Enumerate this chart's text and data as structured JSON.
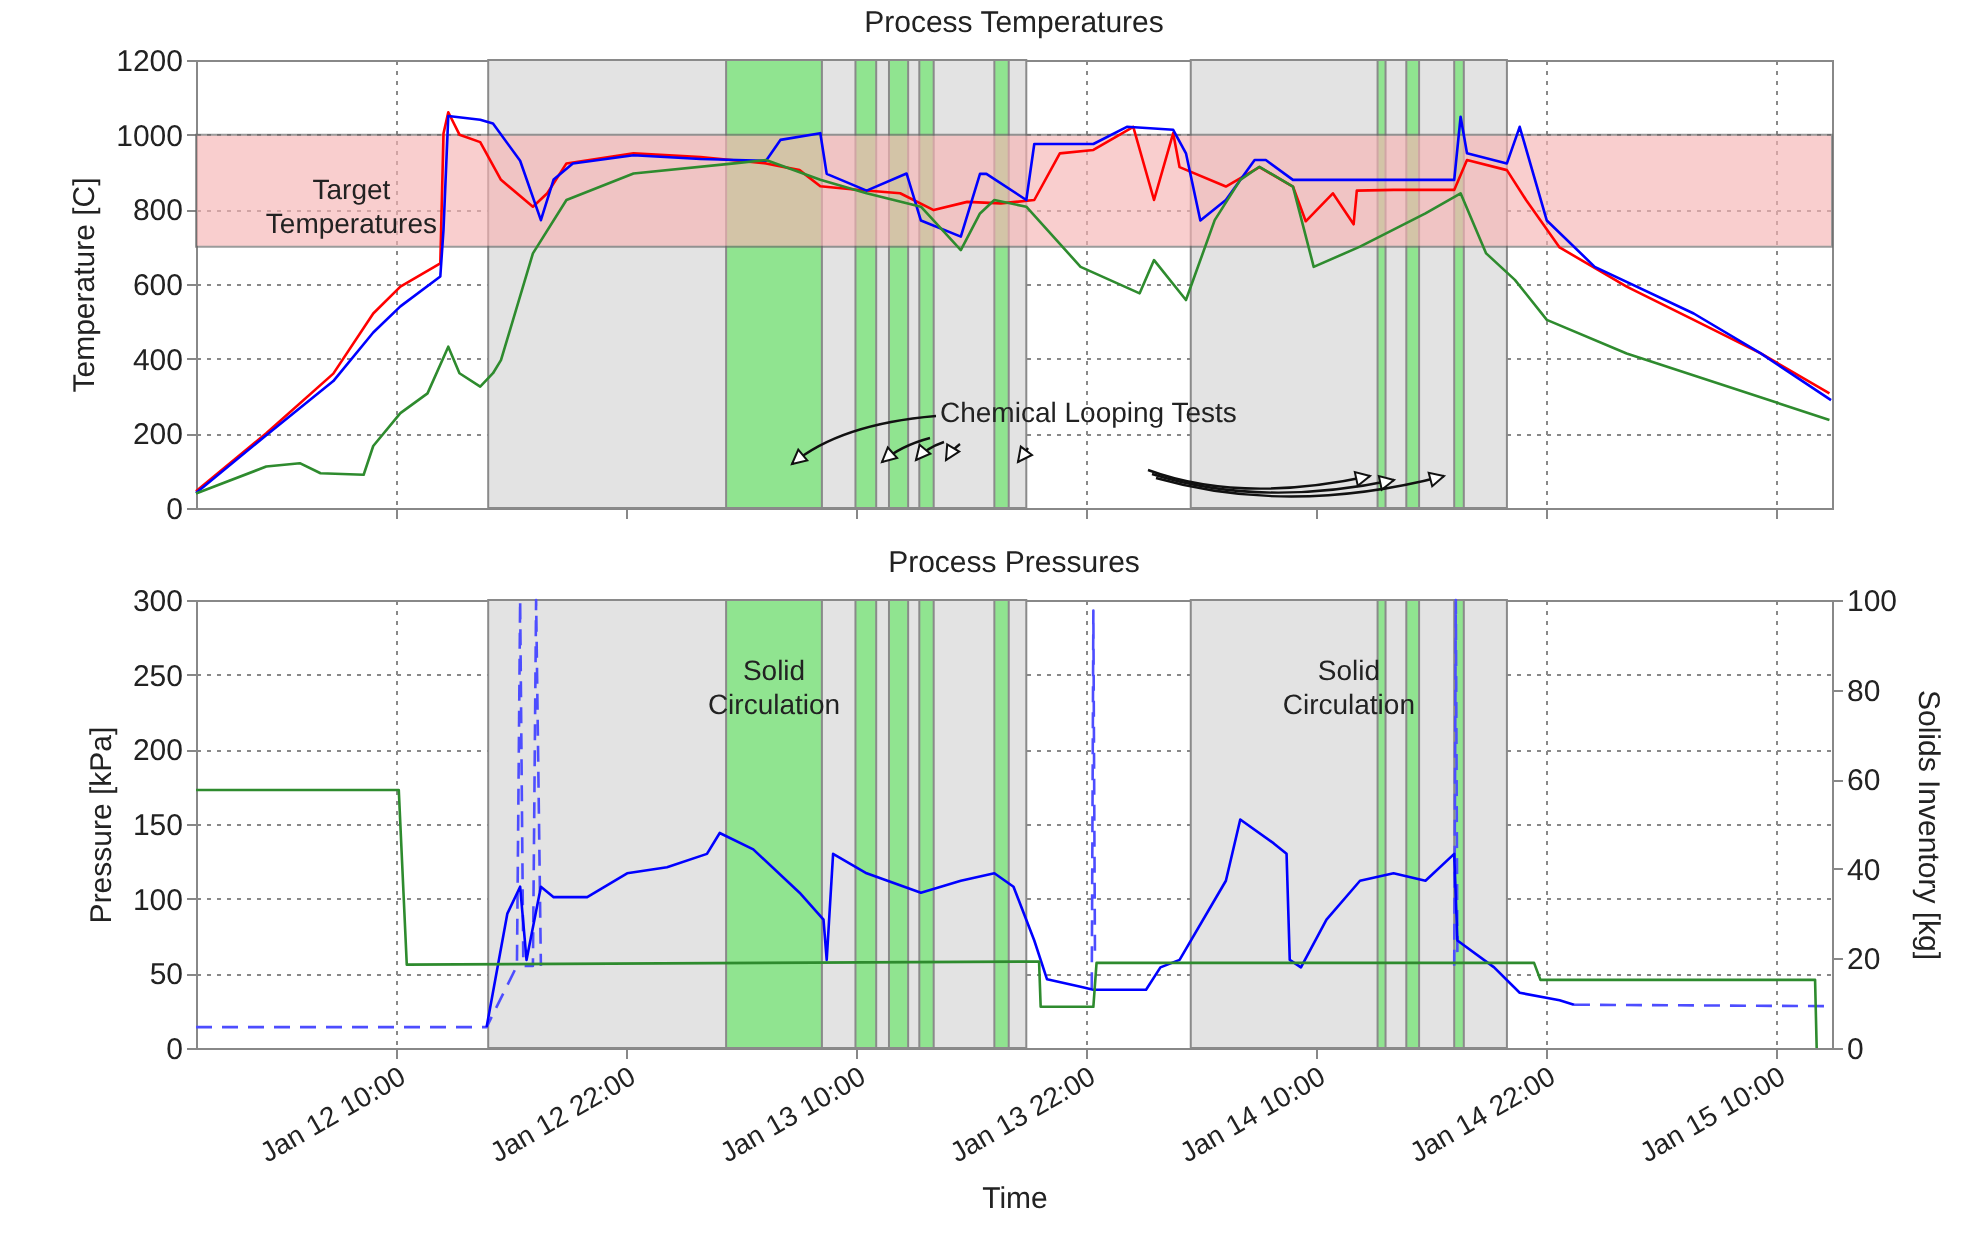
{
  "chart_data": [
    {
      "type": "line",
      "title": "Process Temperatures",
      "ylabel": "Temperature [C]",
      "xlim": [
        "--01-11T23:35",
        "--01-15T12:58"
      ],
      "xticks": [
        {
          "value": "--01-12T10:00",
          "label": "Jan 12 10:00"
        },
        {
          "value": "--01-12T22:00",
          "label": "Jan 12 22:00"
        },
        {
          "value": "--01-13T10:00",
          "label": "Jan 13 10:00"
        },
        {
          "value": "--01-13T22:00",
          "label": "Jan 13 22:00"
        },
        {
          "value": "--01-14T10:00",
          "label": "Jan 14 10:00"
        },
        {
          "value": "--01-14T22:00",
          "label": "Jan 14 22:00"
        },
        {
          "value": "--01-15T10:00",
          "label": "Jan 15 10:00"
        }
      ],
      "ylim": [
        0,
        1200
      ],
      "yticks": [
        0,
        200,
        400,
        600,
        800,
        1000,
        1200
      ],
      "grid": true,
      "tick_labels": "y",
      "bands": [
        {
          "axis": "x",
          "from": "--01-12T14:50",
          "to": "--01-13T18:55",
          "color": "#e3e3e3"
        },
        {
          "axis": "x",
          "from": "--01-14T03:30",
          "to": "--01-14T20:00",
          "color": "#e3e3e3"
        },
        {
          "axis": "x",
          "from": "--01-13T03:15",
          "to": "--01-13T08:15",
          "color": "#90e490"
        },
        {
          "axis": "x",
          "from": "--01-13T10:00",
          "to": "--01-13T11:05",
          "color": "#90e490"
        },
        {
          "axis": "x",
          "from": "--01-13T11:45",
          "to": "--01-13T12:45",
          "color": "#90e490"
        },
        {
          "axis": "x",
          "from": "--01-13T13:20",
          "to": "--01-13T14:05",
          "color": "#90e490"
        },
        {
          "axis": "x",
          "from": "--01-13T17:15",
          "to": "--01-13T18:00",
          "color": "#90e490"
        },
        {
          "axis": "x",
          "from": "--01-14T13:15",
          "to": "--01-14T13:40",
          "color": "#90e490"
        },
        {
          "axis": "x",
          "from": "--01-14T14:45",
          "to": "--01-14T15:25",
          "color": "#90e490"
        },
        {
          "axis": "x",
          "from": "--01-14T17:15",
          "to": "--01-14T17:45",
          "color": "#90e490"
        },
        {
          "axis": "y",
          "from": 700,
          "to": 1000,
          "label": "Target Temperatures",
          "color": "#f7b4b4"
        }
      ],
      "annotations": [
        "Chemical Looping Tests"
      ],
      "series": [
        {
          "color": "#ff0000",
          "x": [
            "--01-11T23:35",
            "--01-12T03:15",
            "--01-12T06:45",
            "--01-12T08:50",
            "--01-12T10:15",
            "--01-12T12:20",
            "--01-12T12:30",
            "--01-12T12:45",
            "--01-12T13:20",
            "--01-12T14:25",
            "--01-12T15:30",
            "--01-12T17:10",
            "--01-12T17:55",
            "--01-12T18:55",
            "--01-12T22:25",
            "--01-13T01:55",
            "--01-13T05:20",
            "--01-13T07:05",
            "--01-13T08:10",
            "--01-13T09:55",
            "--01-13T12:20",
            "--01-13T14:05",
            "--01-13T15:50",
            "--01-13T17:35",
            "--01-13T19:20",
            "--01-13T20:40",
            "--01-13T22:25",
            "--01-14T00:30",
            "--01-14T01:35",
            "--01-14T02:35",
            "--01-14T02:55",
            "--01-14T05:20",
            "--01-14T07:05",
            "--01-14T08:50",
            "--01-14T09:30",
            "--01-14T10:55",
            "--01-14T12:00",
            "--01-14T12:10",
            "--01-14T14:05",
            "--01-14T17:15",
            "--01-14T17:55",
            "--01-14T20:00",
            "--01-14T21:00",
            "--01-14T22:45",
            "--01-15T02:15",
            "--01-15T05:45",
            "--01-15T09:15",
            "--01-15T12:50"
          ],
          "values": [
            45,
            200,
            360,
            521,
            593,
            655,
            1003,
            1060,
            1000,
            980,
            879,
            807,
            843,
            923,
            950,
            940,
            923,
            905,
            862,
            853,
            843,
            798,
            820,
            816,
            825,
            950,
            959,
            1021,
            825,
            1004,
            913,
            861,
            913,
            861,
            768,
            843,
            760,
            850,
            852,
            852,
            932,
            905,
            825,
            698,
            593,
            504,
            414,
            307
          ]
        },
        {
          "color": "#0000ff",
          "x": [
            "--01-11T23:35",
            "--01-12T03:15",
            "--01-12T06:45",
            "--01-12T08:50",
            "--01-12T10:15",
            "--01-12T12:20",
            "--01-12T12:30",
            "--01-12T12:45",
            "--01-12T14:25",
            "--01-12T15:05",
            "--01-12T16:30",
            "--01-12T17:35",
            "--01-12T18:15",
            "--01-12T19:15",
            "--01-12T22:25",
            "--01-13T01:55",
            "--01-13T05:20",
            "--01-13T06:05",
            "--01-13T08:10",
            "--01-13T08:30",
            "--01-13T10:35",
            "--01-13T12:40",
            "--01-13T13:25",
            "--01-13T15:30",
            "--01-13T16:30",
            "--01-13T16:50",
            "--01-13T18:55",
            "--01-13T19:20",
            "--01-13T22:25",
            "--01-14T00:10",
            "--01-14T02:35",
            "--01-14T03:15",
            "--01-14T04:00",
            "--01-14T05:20",
            "--01-14T06:50",
            "--01-14T07:25",
            "--01-14T08:50",
            "--01-14T12:20",
            "--01-14T17:15",
            "--01-14T17:35",
            "--01-14T17:55",
            "--01-14T20:00",
            "--01-14T20:40",
            "--01-14T22:05",
            "--01-15T00:35",
            "--01-15T05:45",
            "--01-15T09:15",
            "--01-15T12:55"
          ],
          "values": [
            40,
            195,
            340,
            470,
            540,
            620,
            745,
            1050,
            1040,
            1030,
            930,
            771,
            880,
            923,
            945,
            935,
            930,
            986,
            1004,
            895,
            850,
            896,
            770,
            727,
            895,
            895,
            825,
            975,
            975,
            1021,
            1013,
            950,
            770,
            825,
            932,
            932,
            879,
            879,
            879,
            1048,
            950,
            923,
            1021,
            770,
            646,
            521,
            414,
            289
          ]
        },
        {
          "color": "#2e8b2e",
          "x": [
            "--01-11T23:35",
            "--01-12T03:15",
            "--01-12T05:00",
            "--01-12T06:05",
            "--01-12T08:20",
            "--01-12T08:50",
            "--01-12T10:15",
            "--01-12T11:40",
            "--01-12T12:45",
            "--01-12T13:20",
            "--01-12T14:25",
            "--01-12T15:05",
            "--01-12T15:30",
            "--01-12T17:10",
            "--01-12T18:55",
            "--01-12T22:25",
            "--01-13T03:40",
            "--01-13T05:20",
            "--01-13T08:10",
            "--01-13T10:35",
            "--01-13T13:25",
            "--01-13T15:30",
            "--01-13T16:30",
            "--01-13T17:15",
            "--01-13T18:55",
            "--01-13T21:45",
            "--01-14T00:50",
            "--01-14T01:35",
            "--01-14T03:15",
            "--01-14T04:45",
            "--01-14T06:05",
            "--01-14T07:05",
            "--01-14T08:50",
            "--01-14T09:55",
            "--01-14T12:20",
            "--01-14T15:45",
            "--01-14T17:35",
            "--01-14T18:55",
            "--01-14T20:25",
            "--01-14T22:05",
            "--01-15T02:15",
            "--01-15T12:50"
          ],
          "values": [
            39,
            111,
            120,
            93,
            89,
            166,
            254,
            307,
            432,
            361,
            325,
            361,
            396,
            682,
            825,
            896,
            923,
            932,
            879,
            843,
            807,
            691,
            789,
            825,
            807,
            646,
            575,
            664,
            557,
            771,
            879,
            914,
            861,
            646,
            700,
            789,
            843,
            682,
            611,
            504,
            414,
            236
          ]
        }
      ]
    },
    {
      "type": "line",
      "title": "Process Pressures",
      "xlabel": "Time",
      "ylabel": "Pressure [kPa]",
      "y2label": "Solids Inventory [kg]",
      "xlim": [
        "--01-11T23:35",
        "--01-15T12:58"
      ],
      "xticks": [
        {
          "value": "--01-12T10:00",
          "label": "Jan 12 10:00"
        },
        {
          "value": "--01-12T22:00",
          "label": "Jan 12 22:00"
        },
        {
          "value": "--01-13T10:00",
          "label": "Jan 13 10:00"
        },
        {
          "value": "--01-13T22:00",
          "label": "Jan 13 22:00"
        },
        {
          "value": "--01-14T10:00",
          "label": "Jan 14 10:00"
        },
        {
          "value": "--01-14T22:00",
          "label": "Jan 14 22:00"
        },
        {
          "value": "--01-15T10:00",
          "label": "Jan 15 10:00"
        }
      ],
      "ylim": [
        0,
        300
      ],
      "yticks": [
        0,
        50,
        100,
        150,
        200,
        250,
        300
      ],
      "y2lim": [
        0,
        100
      ],
      "y2ticks": [
        0,
        20,
        40,
        60,
        80,
        100
      ],
      "grid": true,
      "bands": [
        {
          "axis": "x",
          "from": "--01-12T14:50",
          "to": "--01-13T18:55",
          "color": "#e3e3e3"
        },
        {
          "axis": "x",
          "from": "--01-14T03:30",
          "to": "--01-14T20:00",
          "color": "#e3e3e3",
          "label": "Solid Circulation"
        },
        {
          "axis": "x",
          "from": "--01-13T03:15",
          "to": "--01-13T08:15",
          "color": "#90e490",
          "label": "Solid Circulation"
        },
        {
          "axis": "x",
          "from": "--01-13T10:00",
          "to": "--01-13T11:05",
          "color": "#90e490"
        },
        {
          "axis": "x",
          "from": "--01-13T11:45",
          "to": "--01-13T12:45",
          "color": "#90e490"
        },
        {
          "axis": "x",
          "from": "--01-13T13:20",
          "to": "--01-13T14:05",
          "color": "#90e490"
        },
        {
          "axis": "x",
          "from": "--01-13T17:15",
          "to": "--01-13T18:00",
          "color": "#90e490"
        },
        {
          "axis": "x",
          "from": "--01-14T13:15",
          "to": "--01-14T13:40",
          "color": "#90e490"
        },
        {
          "axis": "x",
          "from": "--01-14T14:45",
          "to": "--01-14T15:25",
          "color": "#90e490"
        },
        {
          "axis": "x",
          "from": "--01-14T17:15",
          "to": "--01-14T17:45",
          "color": "#90e490"
        }
      ],
      "series": [
        {
          "color": "#4d4dff",
          "line_style": "dashed",
          "x": [
            "--01-11T23:35",
            "--01-12T14:45",
            "--01-12T16:20",
            "--01-12T16:30",
            "--01-12T16:40",
            "--01-12T17:10",
            "--01-12T17:20",
            "--01-12T17:35",
            "--01-12T20:00",
            "--01-13T22:20",
            "--01-13T22:25",
            "--01-13T22:30",
            "--01-14T12:00",
            "--01-14T17:15",
            "--01-14T17:20",
            "--01-14T17:25",
            "--01-14T20:00",
            "--01-14T23:30",
            "--01-15T12:55"
          ],
          "values": [
            14,
            14,
            55,
            300,
            55,
            55,
            300,
            55,
            null,
            40,
            293,
            65,
            null,
            55,
            300,
            60,
            null,
            29,
            28
          ]
        },
        {
          "color": "#0000ff",
          "x": [
            "--01-12T14:45",
            "--01-12T15:50",
            "--01-12T16:30",
            "--01-12T16:50",
            "--01-12T17:35",
            "--01-12T18:15",
            "--01-12T20:00",
            "--01-12T22:05",
            "--01-13T00:10",
            "--01-13T02:15",
            "--01-13T02:55",
            "--01-13T04:40",
            "--01-13T07:05",
            "--01-13T08:20",
            "--01-13T08:30",
            "--01-13T08:50",
            "--01-13T10:35",
            "--01-13T13:25",
            "--01-13T15:30",
            "--01-13T17:15",
            "--01-13T18:15",
            "--01-13T19:20",
            "--01-13T20:00",
            "--01-13T21:45",
            "--01-13T22:25",
            "--01-14T01:10",
            "--01-14T01:55",
            "--01-14T02:55",
            "--01-14T05:20",
            "--01-14T06:05",
            "--01-14T07:50",
            "--01-14T08:30",
            "--01-14T08:40",
            "--01-14T09:15",
            "--01-14T10:35",
            "--01-14T12:20",
            "--01-14T14:05",
            "--01-14T15:45",
            "--01-14T17:15",
            "--01-14T17:25",
            "--01-14T19:20",
            "--01-14T20:40",
            "--01-14T22:45",
            "--01-14T23:30"
          ],
          "values": [
            14,
            90,
            108,
            59,
            108,
            101,
            101,
            117,
            121,
            130,
            144,
            133,
            104,
            86,
            59,
            130,
            117,
            104,
            112,
            117,
            108,
            72,
            46,
            41,
            39,
            39,
            54,
            59,
            112,
            153,
            137,
            130,
            59,
            54,
            86,
            112,
            117,
            112,
            130,
            72,
            54,
            37,
            32,
            29
          ]
        },
        {
          "color": "#2e8b2e",
          "axis": "y2",
          "x": [
            "--01-11T23:35",
            "--01-12T10:10",
            "--01-12T10:35",
            "--01-13T19:35",
            "--01-13T19:40",
            "--01-13T22:25",
            "--01-13T22:35",
            "--01-14T21:25",
            "--01-14T21:45",
            "--01-15T12:05",
            "--01-15T12:10"
          ],
          "values": [
            57.6,
            57.6,
            18.6,
            19.3,
            9.2,
            9.2,
            19,
            19,
            15.2,
            15.2,
            0
          ]
        }
      ]
    }
  ]
}
